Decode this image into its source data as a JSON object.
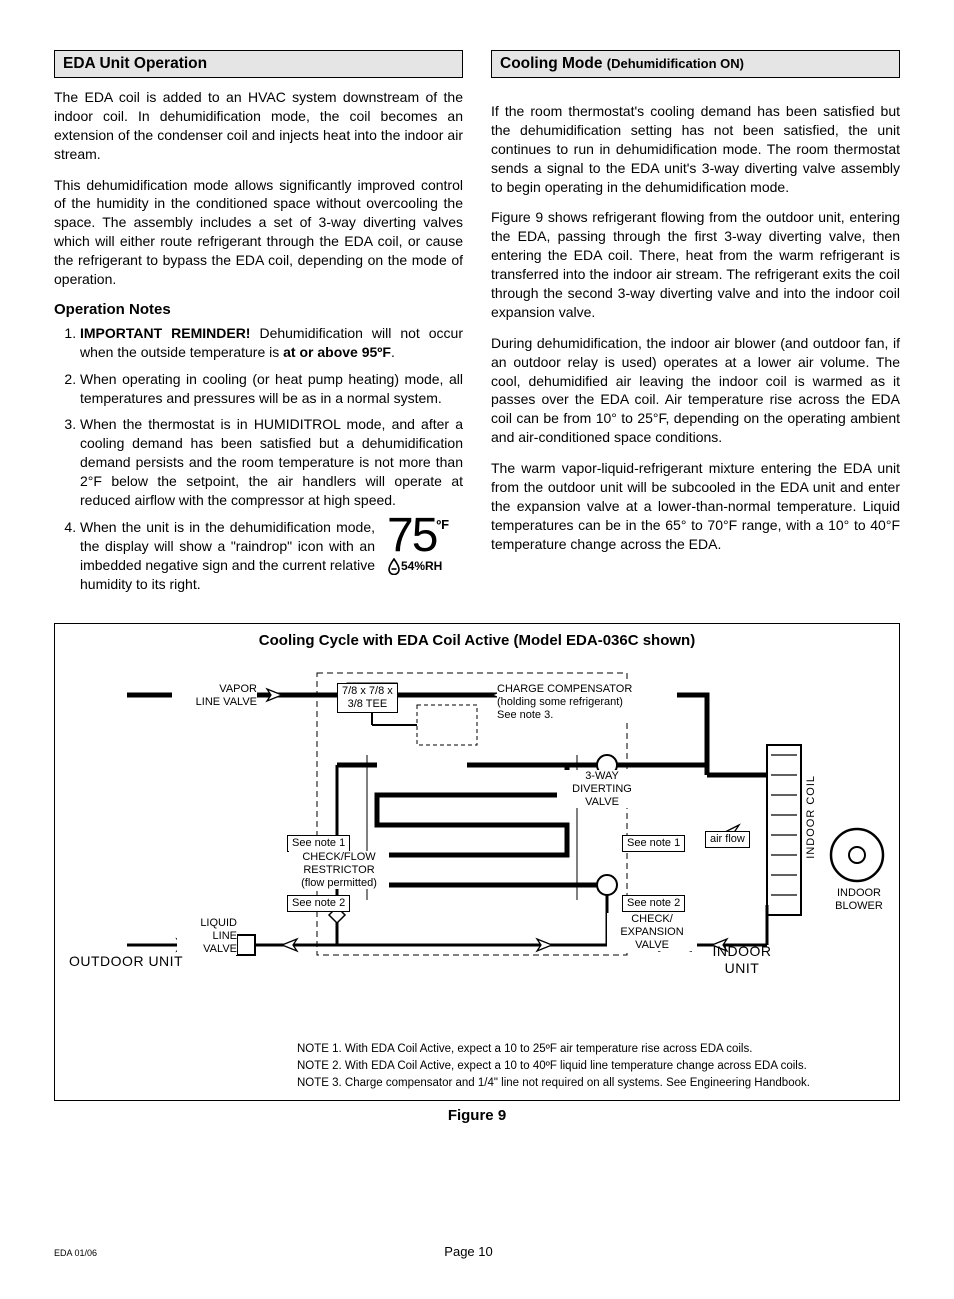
{
  "left": {
    "header": "EDA Unit Operation",
    "p1": "The EDA coil is added to an HVAC system downstream of the indoor coil. In dehumidification mode, the coil becomes an extension of the condenser coil and injects heat into the indoor air stream.",
    "p2": "This dehumidification mode allows significantly improved control of the humidity in the conditioned space without overcooling the space. The assembly includes a set of 3-way diverting valves which will either route refrigerant through the EDA coil, or cause the refrigerant to bypass the EDA coil, depending on the mode of operation.",
    "subhead": "Operation Notes",
    "li1_lead": "IMPORTANT REMINDER!",
    "li1_mid": " Dehumidification will not occur when the outside temperature is ",
    "li1_bold2": "at or above 95ºF",
    "li2": "When operating in cooling (or heat pump heating) mode, all temperatures and pressures will be as in a normal system.",
    "li3": "When the thermostat is in HUMIDITROL mode, and after a cooling demand has been satisfied but a dehumidification demand persists and the room temperature is not more than 2°F below the setpoint, the air handlers will operate at reduced airflow with the compressor at high speed.",
    "li4": "When the unit is in the dehumidification mode, the display will show a \"raindrop\" icon with an imbedded negative sign and the current relative humidity to its right.",
    "thermo_temp": "75",
    "thermo_deg": "ºF",
    "thermo_rh": "54%RH"
  },
  "right": {
    "header_main": "Cooling Mode ",
    "header_sub": "(Dehumidification ON)",
    "p1": "If the room thermostat's cooling demand has been satisfied but the dehumidification setting has not been satisfied, the unit continues to run in dehumidification mode. The room thermostat sends a signal to the EDA unit's 3-way diverting valve assembly  to begin operating in the dehumidification mode.",
    "p2": "Figure 9 shows refrigerant flowing from the outdoor unit, entering the EDA, passing through the first 3-way diverting valve, then entering the EDA coil. There, heat from the warm refrigerant is transferred into the indoor air stream. The refrigerant exits the coil through the second 3-way diverting valve and into the indoor coil expansion valve.",
    "p3": "During dehumidification, the indoor air blower (and outdoor fan, if an outdoor relay is used) operates at a lower air volume. The cool, dehumidified air leaving the indoor coil is warmed as it passes over the EDA coil. Air temperature rise across the EDA coil can be from 10° to 25°F, depending on the operating ambient and air-conditioned space conditions.",
    "p4": "The warm vapor-liquid-refrigerant mixture entering the EDA unit from the outdoor unit will be subcooled in the EDA unit and enter the expansion valve at a lower-than-normal temperature. Liquid temperatures can be in the 65° to 70°F range, with a 10° to 40°F temperature change across the EDA."
  },
  "figure": {
    "title": "Cooling Cycle with EDA Coil Active (Model EDA-036C shown)",
    "caption": "Figure 9",
    "labels": {
      "vapor_line_valve": "VAPOR\nLINE VALVE",
      "tee": "7/8 x 7/8 x\n3/8 TEE",
      "charge_comp": "CHARGE COMPENSATOR\n(holding some refrigerant)\nSee note 3.",
      "three_way": "3-WAY\nDIVERTING\nVALVE",
      "see_note1": "See note 1",
      "see_note2": "See note 2",
      "check_flow": "CHECK/FLOW\nRESTRICTOR\n(flow permitted)",
      "liquid_line_valve": "LIQUID\nLINE\nVALVE",
      "check_exp": "CHECK/\nEXPANSION\nVALVE",
      "air_flow": "air flow",
      "indoor_coil": "INDOOR COIL",
      "indoor_blower": "INDOOR\nBLOWER",
      "outdoor_unit": "OUTDOOR  UNIT",
      "indoor_unit": "INDOOR\nUNIT"
    },
    "notes": {
      "n1": "NOTE 1. With EDA Coil Active, expect a 10 to 25ºF air temperature rise across EDA  coils.",
      "n2": "NOTE 2. With EDA Coil Active, expect a 10 to 40ºF liquid line temperature change across EDA coils.",
      "n3": "NOTE 3. Charge compensator and 1/4\" line not required on all systems. See Engineering Handbook."
    }
  },
  "footer": {
    "left": "EDA 01/06",
    "center": "Page 10"
  },
  "colors": {
    "header_bg": "#e5e5e5",
    "border": "#000000",
    "text": "#000000"
  }
}
